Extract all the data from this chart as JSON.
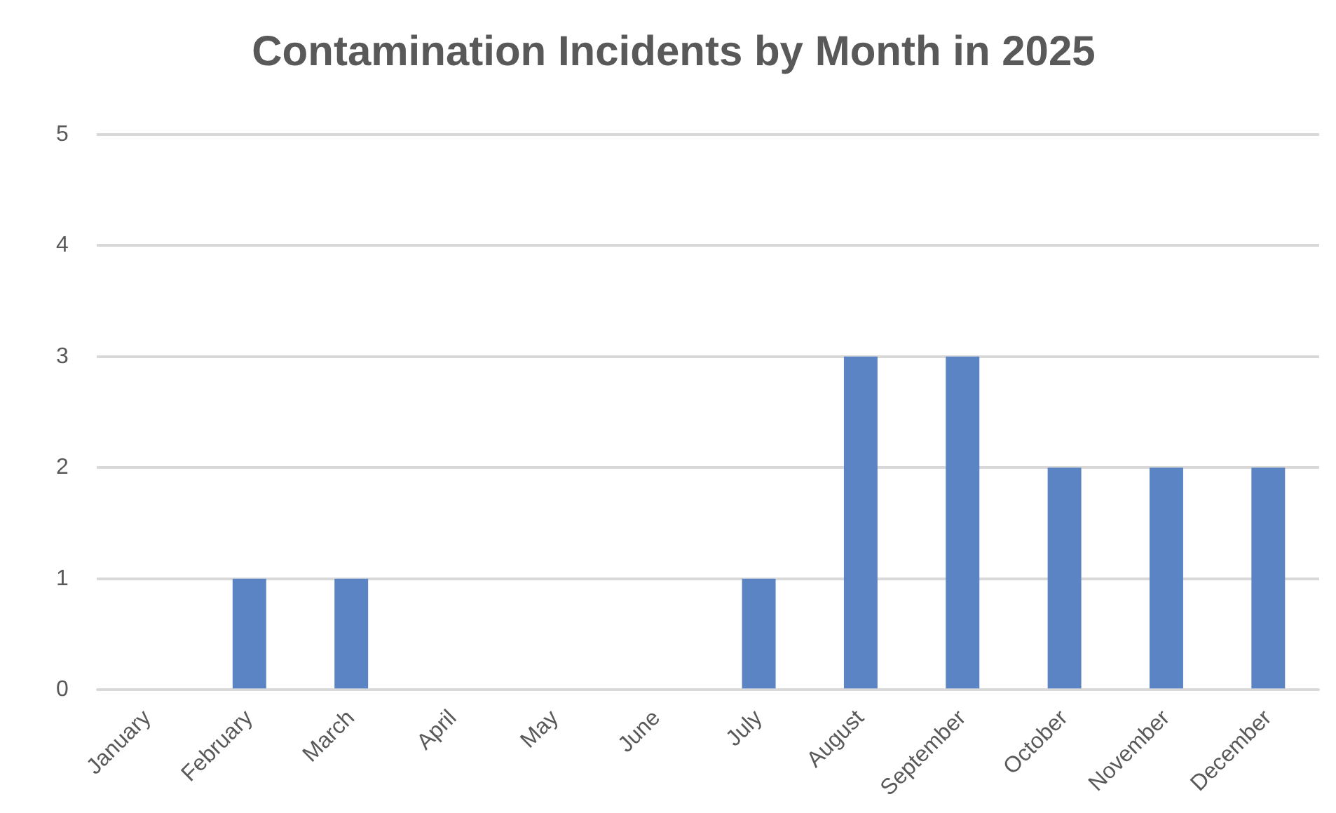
{
  "chart_data": {
    "type": "bar",
    "title": "Contamination Incidents by Month in 2025",
    "categories": [
      "January",
      "February",
      "March",
      "April",
      "May",
      "June",
      "July",
      "August",
      "September",
      "October",
      "November",
      "December"
    ],
    "values": [
      0,
      1,
      1,
      0,
      0,
      0,
      1,
      3,
      3,
      2,
      2,
      2
    ],
    "color": "#5b84c4",
    "ylim": [
      0,
      5
    ],
    "yticks": [
      0,
      1,
      2,
      3,
      4,
      5
    ],
    "grid": "y",
    "legend": false
  }
}
